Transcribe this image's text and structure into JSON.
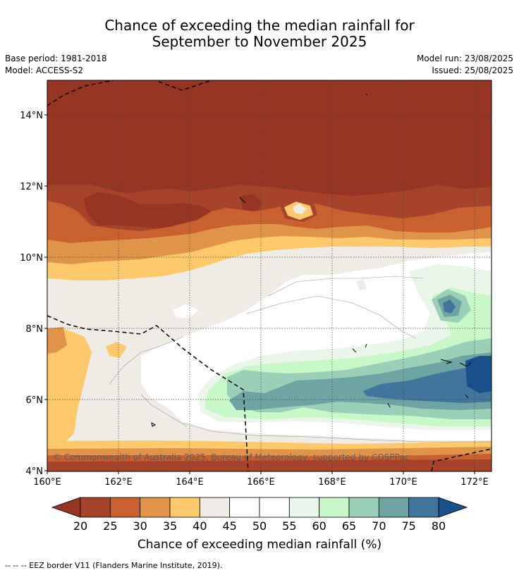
{
  "title_line1": "Chance of exceeding the median rainfall for",
  "title_line2": "September to November 2025",
  "meta": {
    "base_period": "Base period: 1981-2018",
    "model": "Model: ACCESS-S2",
    "model_run": "Model run: 23/08/2025",
    "issued": "Issued: 25/08/2025"
  },
  "copyright": "© Commonwealth of Australia 2025, Bureau of Meteorology, supported by COSPPac",
  "axes": {
    "lat_labels": [
      "14°N",
      "12°N",
      "10°N",
      "8°N",
      "6°N",
      "4°N"
    ],
    "lon_labels": [
      "160°E",
      "162°E",
      "164°E",
      "166°E",
      "168°E",
      "170°E",
      "172°E"
    ]
  },
  "colorbar": {
    "title": "Chance of exceeding median rainfall (%)",
    "labels": [
      "20",
      "25",
      "30",
      "35",
      "40",
      "45",
      "50",
      "55",
      "60",
      "65",
      "70",
      "75",
      "80"
    ],
    "colors": [
      "#a8432b",
      "#c8612f",
      "#e0944a",
      "#fdc96b",
      "#efebe5",
      "#ffffff",
      "#ffffff",
      "#eaf6ea",
      "#c8f8c8",
      "#9ccfb8",
      "#6fa4a4",
      "#41759b"
    ],
    "under_color": "#973524",
    "over_color": "#17508a"
  },
  "footer": "--  --  -- EEZ border V11 (Flanders Marine Institute, 2019)."
}
